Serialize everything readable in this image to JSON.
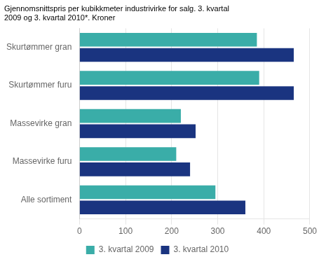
{
  "chart_data": {
    "type": "bar",
    "orientation": "horizontal",
    "title": [
      "Gjennomsnittspris per kubikkmeter industrivirke for salg. 3. kvartal",
      "2009 og 3. kvartal 2010*. Kroner"
    ],
    "categories": [
      "Skurtømmer gran",
      "Skurtømmer furu",
      "Massevirke gran",
      "Massevirke furu",
      "Alle sortiment"
    ],
    "series": [
      {
        "name": "3. kvartal 2009",
        "color": "#3aada8",
        "values": [
          385,
          390,
          220,
          210,
          295
        ]
      },
      {
        "name": "3. kvartal 2010",
        "color": "#1a3480",
        "values": [
          465,
          465,
          252,
          240,
          360
        ]
      }
    ],
    "xlim": [
      0,
      500
    ],
    "xticks": [
      0,
      100,
      200,
      300,
      400,
      500
    ],
    "grid": true,
    "legend": "bottom"
  }
}
